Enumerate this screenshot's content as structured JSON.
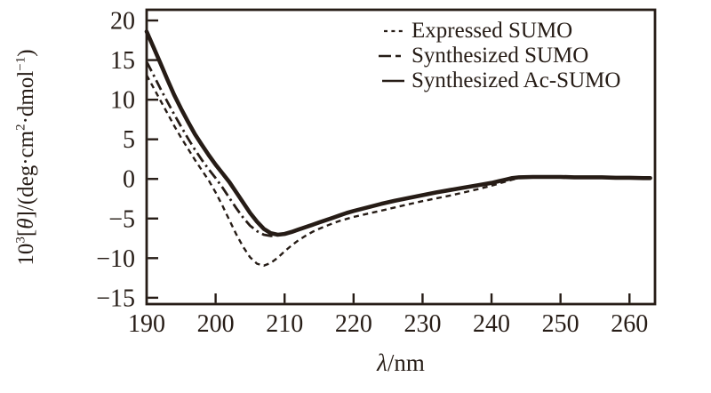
{
  "figure": {
    "background": "#ffffff",
    "ink_color": "#261c16",
    "description": "Circular dichroism spectra comparing expressed and synthesized SUMO proteins"
  },
  "chart_data": {
    "type": "line",
    "title": "",
    "xlabel": "λ/nm",
    "ylabel": "10³[θ]/(deg·cm²·dmol⁻¹)",
    "xlabel_parts": {
      "lambda": "λ",
      "rest": "/nm"
    },
    "ylabel_parts": {
      "p1": "10",
      "sup1": "3",
      "p2": "[",
      "theta": "θ",
      "p3": "]/(deg·cm",
      "sup2": "2",
      "p4": "·dmol",
      "sup3": "−1",
      "p5": ")"
    },
    "x_range": [
      190,
      263.7
    ],
    "y_range": [
      -15.8,
      21.35
    ],
    "x_tick_values": [
      190,
      200,
      210,
      220,
      230,
      240,
      250,
      260
    ],
    "x_tick_labels": [
      "190",
      "200",
      "210",
      "220",
      "230",
      "240",
      "250",
      "260"
    ],
    "y_tick_values": [
      20,
      15,
      10,
      5,
      0,
      -5,
      -10,
      -15
    ],
    "y_tick_labels": [
      "20",
      "15",
      "10",
      "5",
      "0",
      "−5",
      "−10",
      "−15"
    ],
    "grid": false,
    "legend_position": "top-right",
    "series": [
      {
        "name": "Expressed SUMO",
        "style": "dashed",
        "points": [
          [
            190,
            13.1
          ],
          [
            191,
            11.5
          ],
          [
            192,
            9.9
          ],
          [
            193,
            8.3
          ],
          [
            194,
            6.7
          ],
          [
            195,
            5.2
          ],
          [
            196,
            3.8
          ],
          [
            197,
            2.4
          ],
          [
            198,
            1.1
          ],
          [
            199,
            -0.2
          ],
          [
            200,
            -1.7
          ],
          [
            201,
            -3.4
          ],
          [
            202,
            -5.2
          ],
          [
            203,
            -7.0
          ],
          [
            204,
            -8.6
          ],
          [
            205,
            -9.9
          ],
          [
            206,
            -10.7
          ],
          [
            207,
            -10.95
          ],
          [
            208,
            -10.6
          ],
          [
            209,
            -9.95
          ],
          [
            210,
            -9.15
          ],
          [
            211,
            -8.4
          ],
          [
            212,
            -7.75
          ],
          [
            213,
            -7.2
          ],
          [
            214,
            -6.7
          ],
          [
            215,
            -6.3
          ],
          [
            216,
            -5.95
          ],
          [
            217,
            -5.6
          ],
          [
            218,
            -5.3
          ],
          [
            219,
            -5.05
          ],
          [
            220,
            -4.8
          ],
          [
            222,
            -4.4
          ],
          [
            224,
            -4.0
          ],
          [
            226,
            -3.6
          ],
          [
            228,
            -3.2
          ],
          [
            230,
            -2.8
          ],
          [
            232,
            -2.45
          ],
          [
            234,
            -2.1
          ],
          [
            236,
            -1.7
          ],
          [
            238,
            -1.3
          ],
          [
            240,
            -0.85
          ],
          [
            241,
            -0.6
          ],
          [
            242,
            -0.35
          ],
          [
            243,
            -0.1
          ],
          [
            244,
            0.1
          ],
          [
            245,
            0.2
          ],
          [
            246,
            0.25
          ],
          [
            248,
            0.25
          ],
          [
            250,
            0.25
          ],
          [
            252,
            0.2
          ],
          [
            254,
            0.2
          ],
          [
            256,
            0.2
          ],
          [
            258,
            0.15
          ],
          [
            260,
            0.15
          ],
          [
            262,
            0.1
          ],
          [
            263,
            0.1
          ]
        ]
      },
      {
        "name": "Synthesized SUMO",
        "style": "dashdot",
        "points": [
          [
            190,
            14.8
          ],
          [
            191,
            13.1
          ],
          [
            192,
            11.4
          ],
          [
            193,
            9.75
          ],
          [
            194,
            8.15
          ],
          [
            195,
            6.6
          ],
          [
            196,
            5.1
          ],
          [
            197,
            3.7
          ],
          [
            198,
            2.4
          ],
          [
            199,
            1.2
          ],
          [
            200,
            0.1
          ],
          [
            201,
            -1.1
          ],
          [
            202,
            -2.4
          ],
          [
            203,
            -3.7
          ],
          [
            204,
            -4.9
          ],
          [
            205,
            -5.9
          ],
          [
            206,
            -6.6
          ],
          [
            207,
            -7.05
          ],
          [
            208,
            -7.2
          ],
          [
            209,
            -7.1
          ],
          [
            210,
            -6.95
          ],
          [
            211,
            -6.7
          ],
          [
            212,
            -6.4
          ],
          [
            213,
            -6.1
          ],
          [
            214,
            -5.8
          ],
          [
            215,
            -5.5
          ],
          [
            216,
            -5.2
          ],
          [
            217,
            -4.9
          ],
          [
            218,
            -4.6
          ],
          [
            219,
            -4.3
          ],
          [
            220,
            -4.05
          ],
          [
            222,
            -3.6
          ],
          [
            224,
            -3.15
          ],
          [
            226,
            -2.75
          ],
          [
            228,
            -2.4
          ],
          [
            230,
            -2.05
          ],
          [
            232,
            -1.7
          ],
          [
            234,
            -1.4
          ],
          [
            236,
            -1.1
          ],
          [
            238,
            -0.8
          ],
          [
            240,
            -0.5
          ],
          [
            241,
            -0.3
          ],
          [
            242,
            -0.1
          ],
          [
            243,
            0.1
          ],
          [
            244,
            0.2
          ],
          [
            246,
            0.25
          ],
          [
            248,
            0.25
          ],
          [
            250,
            0.25
          ],
          [
            252,
            0.2
          ],
          [
            254,
            0.2
          ],
          [
            256,
            0.2
          ],
          [
            258,
            0.15
          ],
          [
            260,
            0.15
          ],
          [
            262,
            0.1
          ],
          [
            263,
            0.1
          ]
        ]
      },
      {
        "name": "Synthesized Ac-SUMO",
        "style": "solid",
        "points": [
          [
            190,
            18.6
          ],
          [
            191,
            16.6
          ],
          [
            192,
            14.6
          ],
          [
            193,
            12.55
          ],
          [
            194,
            10.6
          ],
          [
            195,
            8.85
          ],
          [
            196,
            7.2
          ],
          [
            197,
            5.65
          ],
          [
            198,
            4.3
          ],
          [
            199,
            3.0
          ],
          [
            200,
            1.8
          ],
          [
            201,
            0.7
          ],
          [
            202,
            -0.4
          ],
          [
            203,
            -1.7
          ],
          [
            204,
            -3.0
          ],
          [
            205,
            -4.3
          ],
          [
            206,
            -5.4
          ],
          [
            207,
            -6.3
          ],
          [
            208,
            -6.85
          ],
          [
            209,
            -7.05
          ],
          [
            210,
            -6.95
          ],
          [
            211,
            -6.7
          ],
          [
            212,
            -6.4
          ],
          [
            213,
            -6.1
          ],
          [
            214,
            -5.8
          ],
          [
            215,
            -5.5
          ],
          [
            216,
            -5.2
          ],
          [
            217,
            -4.9
          ],
          [
            218,
            -4.6
          ],
          [
            219,
            -4.3
          ],
          [
            220,
            -4.05
          ],
          [
            222,
            -3.6
          ],
          [
            224,
            -3.15
          ],
          [
            226,
            -2.75
          ],
          [
            228,
            -2.4
          ],
          [
            230,
            -2.05
          ],
          [
            232,
            -1.7
          ],
          [
            234,
            -1.4
          ],
          [
            236,
            -1.1
          ],
          [
            238,
            -0.8
          ],
          [
            240,
            -0.5
          ],
          [
            241,
            -0.3
          ],
          [
            242,
            -0.1
          ],
          [
            243,
            0.1
          ],
          [
            244,
            0.2
          ],
          [
            246,
            0.25
          ],
          [
            248,
            0.25
          ],
          [
            250,
            0.25
          ],
          [
            252,
            0.2
          ],
          [
            254,
            0.2
          ],
          [
            256,
            0.2
          ],
          [
            258,
            0.15
          ],
          [
            260,
            0.15
          ],
          [
            262,
            0.1
          ],
          [
            263,
            0.1
          ]
        ]
      }
    ]
  }
}
